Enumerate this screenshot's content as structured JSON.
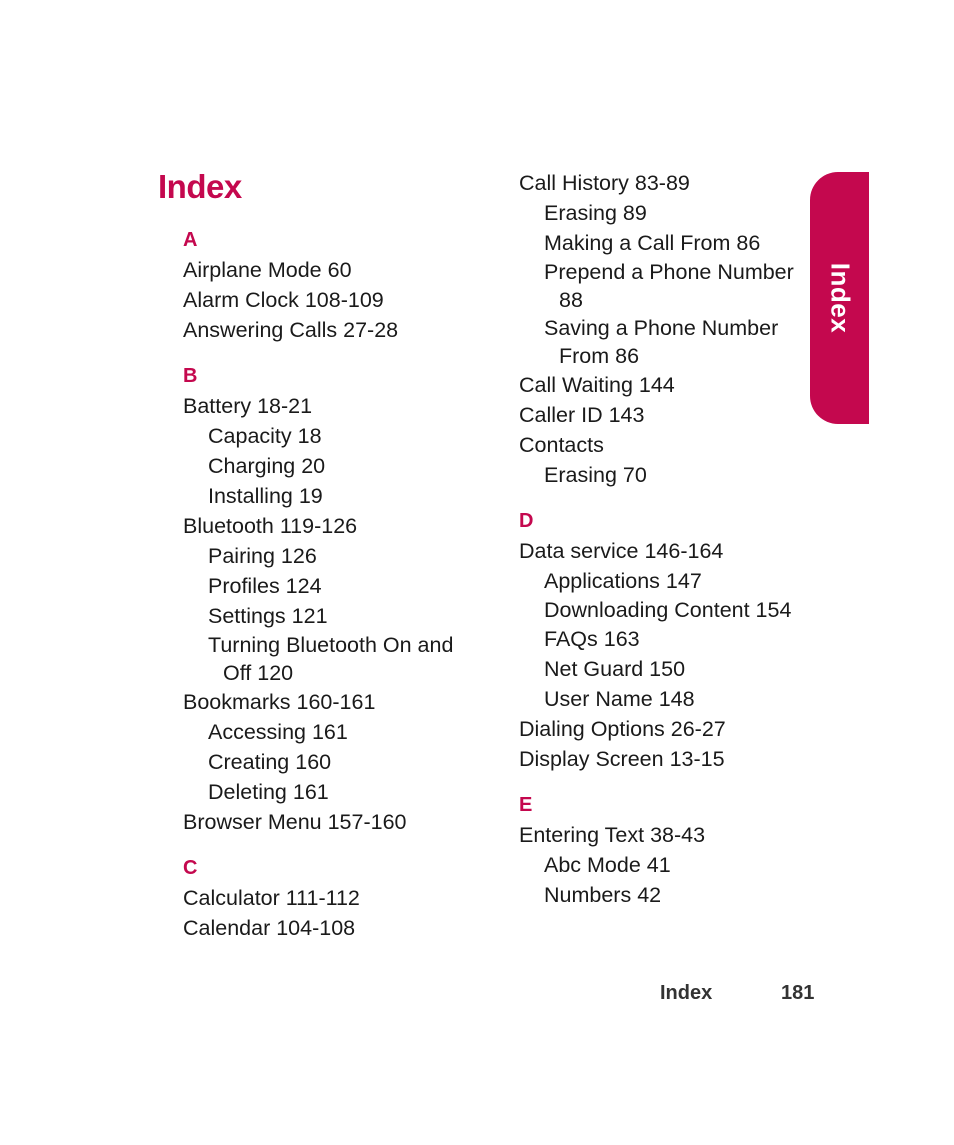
{
  "page_title": "Index",
  "side_tab": {
    "label": "Index",
    "color": "#c4084e"
  },
  "footer": {
    "section": "Index",
    "page_number": "181"
  },
  "accent_color": "#c4084e",
  "left_column": [
    {
      "letter": "A",
      "entries": [
        {
          "text": "Airplane Mode 60",
          "level": 0
        },
        {
          "text": "Alarm Clock 108-109",
          "level": 0
        },
        {
          "text": "Answering Calls 27-28",
          "level": 0
        }
      ]
    },
    {
      "letter": "B",
      "entries": [
        {
          "text": "Battery 18-21",
          "level": 0
        },
        {
          "text": "Capacity 18",
          "level": 1
        },
        {
          "text": "Charging 20",
          "level": 1
        },
        {
          "text": "Installing 19",
          "level": 1
        },
        {
          "text": "Bluetooth 119-126",
          "level": 0
        },
        {
          "text": "Pairing 126",
          "level": 1
        },
        {
          "text": "Profiles 124",
          "level": 1
        },
        {
          "text": "Settings 121",
          "level": 1
        },
        {
          "text": "Turning Bluetooth On and Off 120",
          "level": 1,
          "wrap": true
        },
        {
          "text": "Bookmarks 160-161",
          "level": 0
        },
        {
          "text": "Accessing 161",
          "level": 1
        },
        {
          "text": "Creating 160",
          "level": 1
        },
        {
          "text": "Deleting 161",
          "level": 1
        },
        {
          "text": "Browser Menu 157-160",
          "level": 0
        }
      ]
    },
    {
      "letter": "C",
      "entries": [
        {
          "text": "Calculator 111-112",
          "level": 0
        },
        {
          "text": "Calendar 104-108",
          "level": 0
        }
      ]
    }
  ],
  "right_column": [
    {
      "letter": "",
      "entries": [
        {
          "text": "Call History 83-89",
          "level": 0
        },
        {
          "text": "Erasing 89",
          "level": 1
        },
        {
          "text": "Making a Call From 86",
          "level": 1
        },
        {
          "text": "Prepend a Phone Number 88",
          "level": 1,
          "wrap": true
        },
        {
          "text": "Saving a Phone Number From 86",
          "level": 1,
          "wrap": true
        },
        {
          "text": "Call Waiting 144",
          "level": 0
        },
        {
          "text": "Caller ID 143",
          "level": 0
        },
        {
          "text": "Contacts",
          "level": 0
        },
        {
          "text": "Erasing 70",
          "level": 1
        }
      ]
    },
    {
      "letter": "D",
      "entries": [
        {
          "text": "Data service 146-164",
          "level": 0
        },
        {
          "text": "Applications 147",
          "level": 1
        },
        {
          "text": "Downloading Content 154",
          "level": 1,
          "wrap": true
        },
        {
          "text": "FAQs 163",
          "level": 1
        },
        {
          "text": "Net Guard 150",
          "level": 1
        },
        {
          "text": "User Name 148",
          "level": 1
        },
        {
          "text": "Dialing Options 26-27",
          "level": 0
        },
        {
          "text": "Display Screen 13-15",
          "level": 0
        }
      ]
    },
    {
      "letter": "E",
      "entries": [
        {
          "text": "Entering Text 38-43",
          "level": 0
        },
        {
          "text": "Abc Mode 41",
          "level": 1
        },
        {
          "text": "Numbers 42",
          "level": 1
        }
      ]
    }
  ]
}
